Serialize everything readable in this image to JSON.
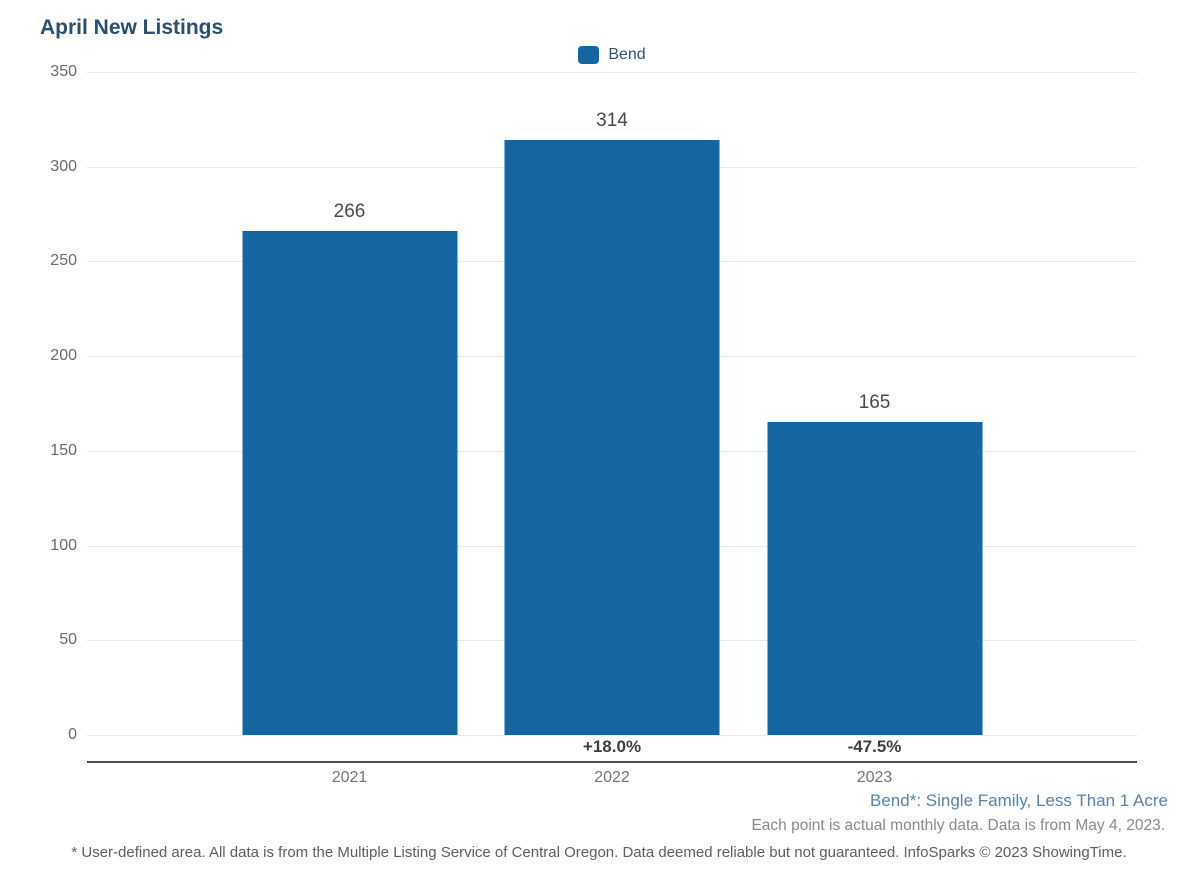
{
  "title": "April New Listings",
  "legend": {
    "label": "Bend",
    "color": "#1465a0"
  },
  "chart_data": {
    "type": "bar",
    "title": "April New Listings",
    "categories": [
      "2021",
      "2022",
      "2023"
    ],
    "values": [
      266,
      314,
      165
    ],
    "pct_change": [
      "",
      "+18.0%",
      "-47.5%"
    ],
    "xlabel": "",
    "ylabel": "",
    "ylim": [
      0,
      350
    ],
    "yticks": [
      0,
      50,
      100,
      150,
      200,
      250,
      300,
      350
    ],
    "grid": true,
    "legend": [
      "Bend"
    ],
    "legend_position": "top-center",
    "bar_color": "#1465a0"
  },
  "footnotes": {
    "series_note": "Bend*: Single Family, Less Than 1 Acre",
    "data_note": "Each point is actual monthly data. Data is from May 4, 2023.",
    "disclaimer": "* User-defined area. All data is from the Multiple Listing Service of Central Oregon. Data deemed reliable but not guaranteed. InfoSparks © 2023 ShowingTime."
  }
}
